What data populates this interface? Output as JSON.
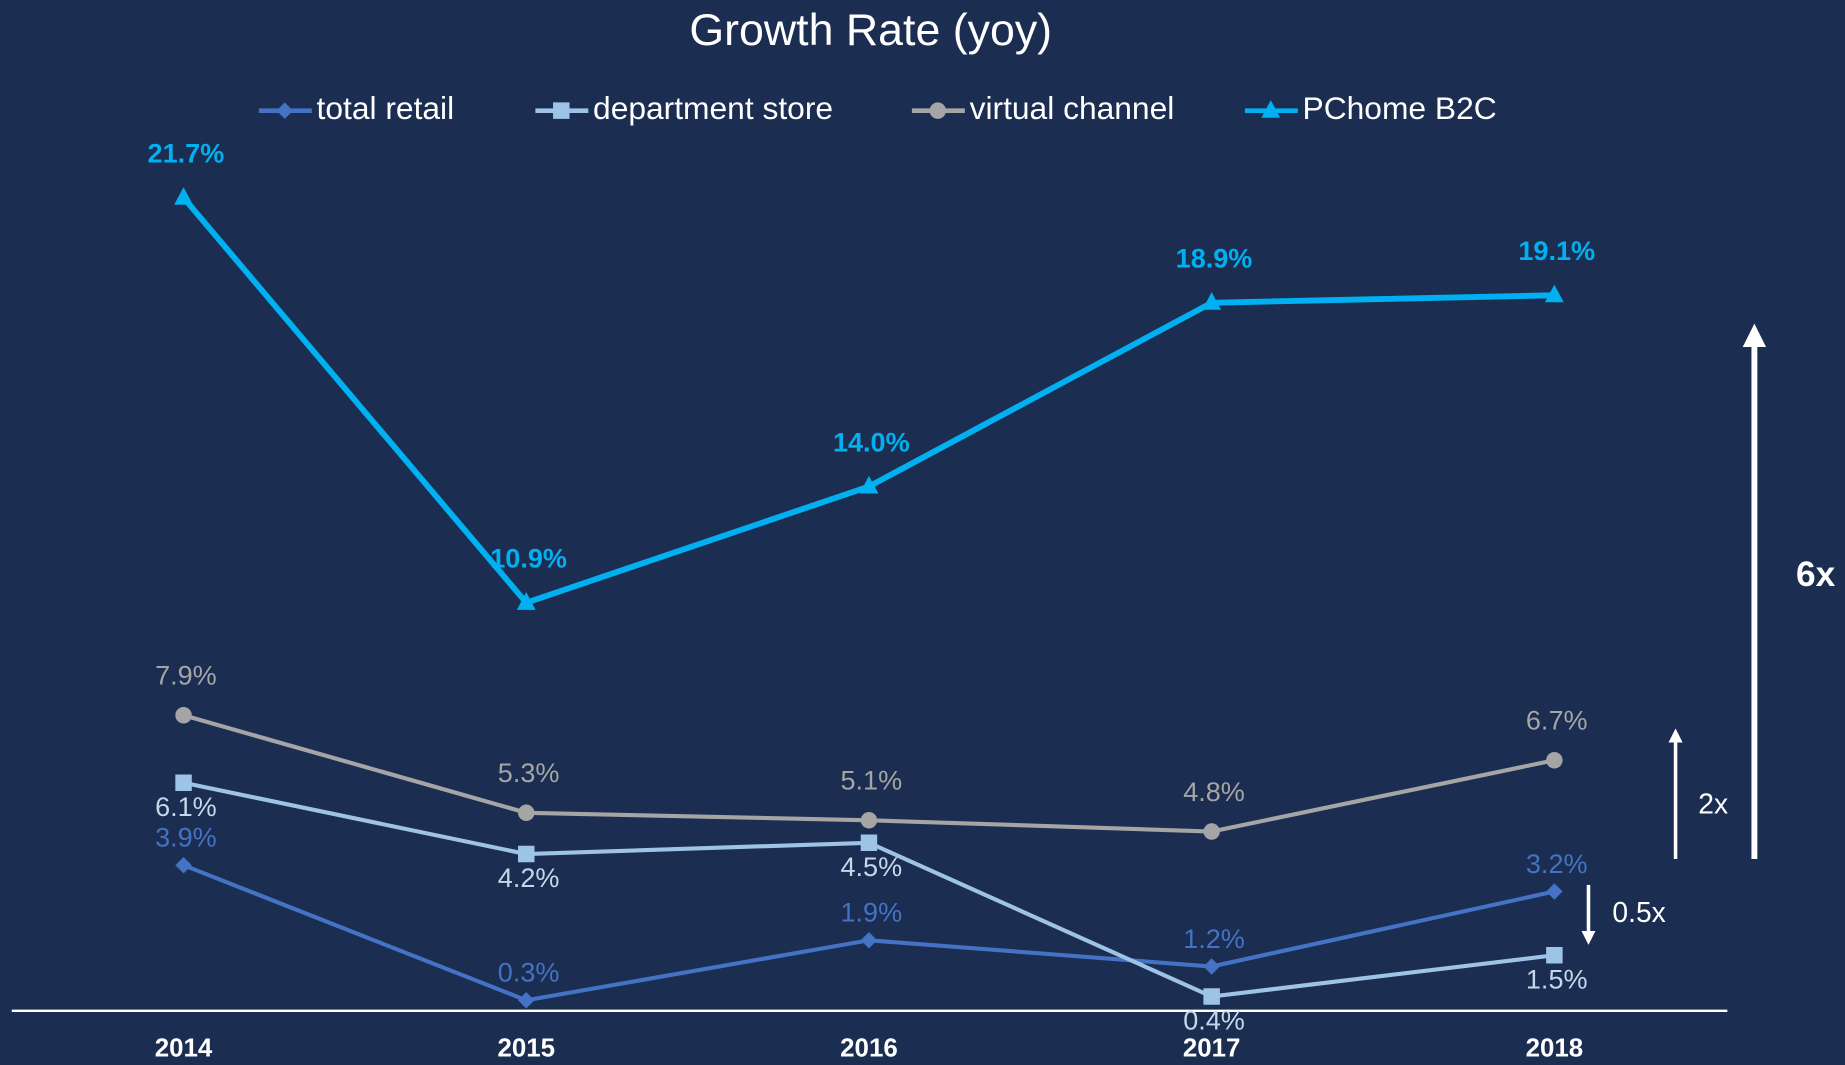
{
  "chart_data": {
    "type": "line",
    "title": "Growth Rate (yoy)",
    "categories": [
      "2014",
      "2015",
      "2016",
      "2017",
      "2018"
    ],
    "ylim": [
      0,
      24
    ],
    "series": [
      {
        "name": "total retail",
        "color": "#4472c4",
        "marker": "diamond",
        "values": [
          3.9,
          0.3,
          1.9,
          1.2,
          3.2
        ],
        "value_labels": [
          "3.9%",
          "0.3%",
          "1.9%",
          "1.2%",
          "3.2%"
        ]
      },
      {
        "name": "department store",
        "color": "#9dc3e6",
        "marker": "square",
        "values": [
          6.1,
          4.2,
          4.5,
          0.4,
          1.5
        ],
        "value_labels": [
          "6.1%",
          "4.2%",
          "4.5%",
          "0.4%",
          "1.5%"
        ]
      },
      {
        "name": "virtual channel",
        "color": "#a5a5a5",
        "marker": "circle",
        "values": [
          7.9,
          5.3,
          5.1,
          4.8,
          6.7
        ],
        "value_labels": [
          "7.9%",
          "5.3%",
          "5.1%",
          "4.8%",
          "6.7%"
        ]
      },
      {
        "name": "PChome B2C",
        "color": "#00b0f0",
        "marker": "triangle",
        "values": [
          21.7,
          10.9,
          14.0,
          18.9,
          19.1
        ],
        "value_labels": [
          "21.7%",
          "10.9%",
          "14.0%",
          "18.9%",
          "19.1%"
        ]
      }
    ],
    "annotations": [
      "6x",
      "2x",
      "0.5x"
    ]
  }
}
